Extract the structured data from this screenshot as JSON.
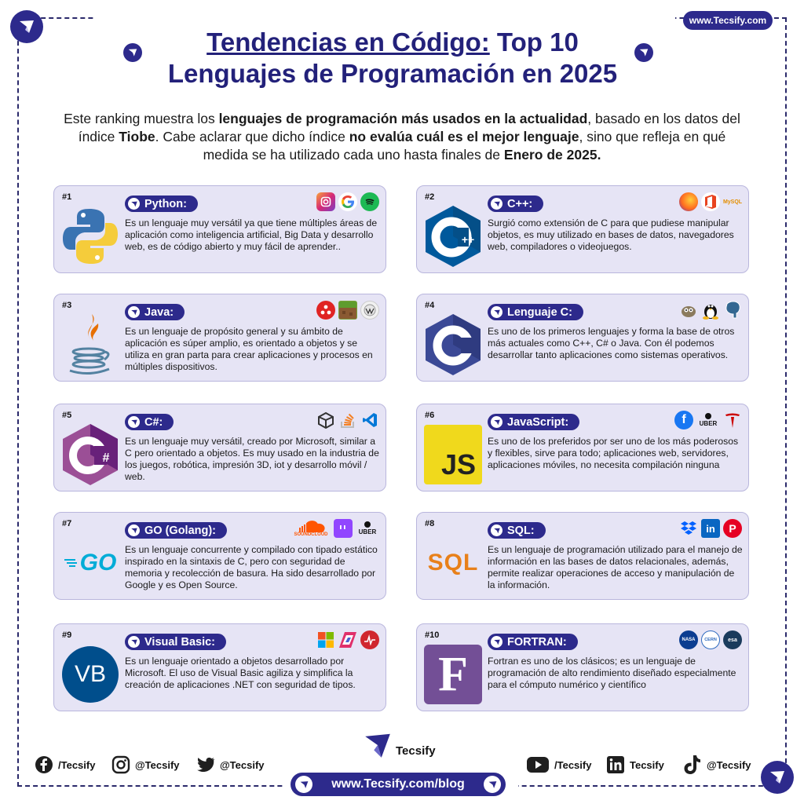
{
  "header": {
    "site_badge": "www.Tecsify.com",
    "title_part1": "Tendencias en Código:",
    "title_part2": " Top 10",
    "title_line2": "Lenguajes de Programación en 2025"
  },
  "intro": {
    "t1": "Este ranking muestra los ",
    "b1": "lenguajes de programación más usados en la actualidad",
    "t2": ", basado en los datos del índice ",
    "b2": "Tiobe",
    "t3": ". Cabe aclarar que dicho índice ",
    "b3": "no evalúa cuál es el mejor lenguaje",
    "t4": ", sino que refleja en qué medida se ha utilizado cada uno hasta finales de ",
    "b4": "Enero de 2025."
  },
  "cards": [
    {
      "rank": "#1",
      "name": "Python:",
      "logo": "python-logo",
      "users": [
        "instagram-icon",
        "google-icon",
        "spotify-icon"
      ],
      "desc": "Es un lenguaje muy versátil ya que tiene múltiples áreas de aplicación como inteligencia artificial, Big Data y desarrollo web, es de código abierto y muy fácil de aprender.."
    },
    {
      "rank": "#2",
      "name": "C++:",
      "logo": "cpp-logo",
      "users": [
        "firefox-icon",
        "office-icon",
        "mysql-icon"
      ],
      "desc": "Surgió como extensión de  C para que pudiese manipular objetos, es muy utilizado en bases de datos, navegadores web, compiladores o videojuegos."
    },
    {
      "rank": "#3",
      "name": "Java:",
      "logo": "java-logo",
      "users": [
        "acrobat-icon",
        "minecraft-icon",
        "wikipedia-icon"
      ],
      "desc": "Es un lenguaje de propósito general y su ámbito de aplicación es súper amplio, es orientado a objetos y se utiliza en gran parta para crear aplicaciones y procesos en múltiples dispositivos."
    },
    {
      "rank": "#4",
      "name": "Lenguaje C:",
      "logo": "c-logo",
      "users": [
        "gimp-icon",
        "linux-icon",
        "postgresql-icon"
      ],
      "desc": "Es uno de los primeros lenguajes y forma la base de otros más actuales como C++, C# o Java. Con él podemos desarrollar tanto aplicaciones como sistemas operativos."
    },
    {
      "rank": "#5",
      "name": "C#:",
      "logo": "csharp-logo",
      "users": [
        "unity-icon",
        "stackoverflow-icon",
        "vscode-icon"
      ],
      "desc": "Es un lenguaje muy versátil, creado por Microsoft, similar a C pero orientado a objetos. Es muy usado en la industria de los juegos, robótica, impresión 3D, iot y desarrollo móvil / web."
    },
    {
      "rank": "#6",
      "name": "JavaScript:",
      "logo": "javascript-logo",
      "users": [
        "facebook-icon",
        "uber-icon",
        "tesla-icon"
      ],
      "desc": "Es uno de los preferidos por ser uno de los más poderosos y flexibles, sirve para todo; aplicaciones web, servidores, aplicaciones móviles, no necesita compilación ninguna"
    },
    {
      "rank": "#7",
      "name": "GO (Golang):",
      "logo": "go-logo",
      "users": [
        "soundcloud-icon",
        "twitch-icon",
        "uber-icon"
      ],
      "desc": "Es un lenguaje concurrente y compilado con tipado estático inspirado en la sintaxis de C, pero con seguridad de memoria y recolección de basura. Ha sido desarrollado por Google y es Open Source."
    },
    {
      "rank": "#8",
      "name": "SQL:",
      "logo": "sql-logo",
      "users": [
        "dropbox-icon",
        "linkedin-icon",
        "pinterest-icon"
      ],
      "desc": "Es un lenguaje de programación utilizado para el manejo de información en las bases de datos relacionales, además, permite realizar operaciones de acceso y manipulación de la información."
    },
    {
      "rank": "#9",
      "name": "Visual Basic:",
      "logo": "visual-basic-logo",
      "users": [
        "microsoft-icon",
        "power-apps-icon",
        "pulse-icon"
      ],
      "desc": "Es un lenguaje orientado a objetos desarrollado por Microsoft. El uso de Visual Basic agiliza y simplifica la creación de aplicaciones .NET con seguridad de tipos."
    },
    {
      "rank": "#10",
      "name": "FORTRAN:",
      "logo": "fortran-logo",
      "users": [
        "nasa-icon",
        "cern-icon",
        "esa-icon"
      ],
      "desc": "Fortran es uno de los clásicos; es un lenguaje de programación de alto rendimiento diseñado especialmente para el cómputo numérico y científico"
    }
  ],
  "logo_text": {
    "cpp": "C++",
    "c": "C",
    "csharp": "C#",
    "js": "JS",
    "go": "GO",
    "sql": "SQL",
    "vb": "VB",
    "fortran": "F",
    "uber": "UBER",
    "soundcloud": "SOUNDCLOUD",
    "nasa": "NASA",
    "cern": "CERN",
    "esa": "esa",
    "mysql": "MySQL"
  },
  "footer": {
    "brand": "Tecsify",
    "url": "www.Tecsify.com/blog",
    "social": [
      {
        "icon": "facebook-icon",
        "label": "/Tecsify"
      },
      {
        "icon": "instagram-icon",
        "label": "@Tecsify"
      },
      {
        "icon": "twitter-icon",
        "label": "@Tecsify"
      },
      {
        "icon": "youtube-icon",
        "label": "/Tecsify"
      },
      {
        "icon": "linkedin-icon",
        "label": "Tecsify"
      },
      {
        "icon": "tiktok-icon",
        "label": "@Tecsify"
      }
    ]
  },
  "colors": {
    "brand": "#2d2a8c",
    "card_bg": "#e6e4f5",
    "title": "#23217a"
  }
}
